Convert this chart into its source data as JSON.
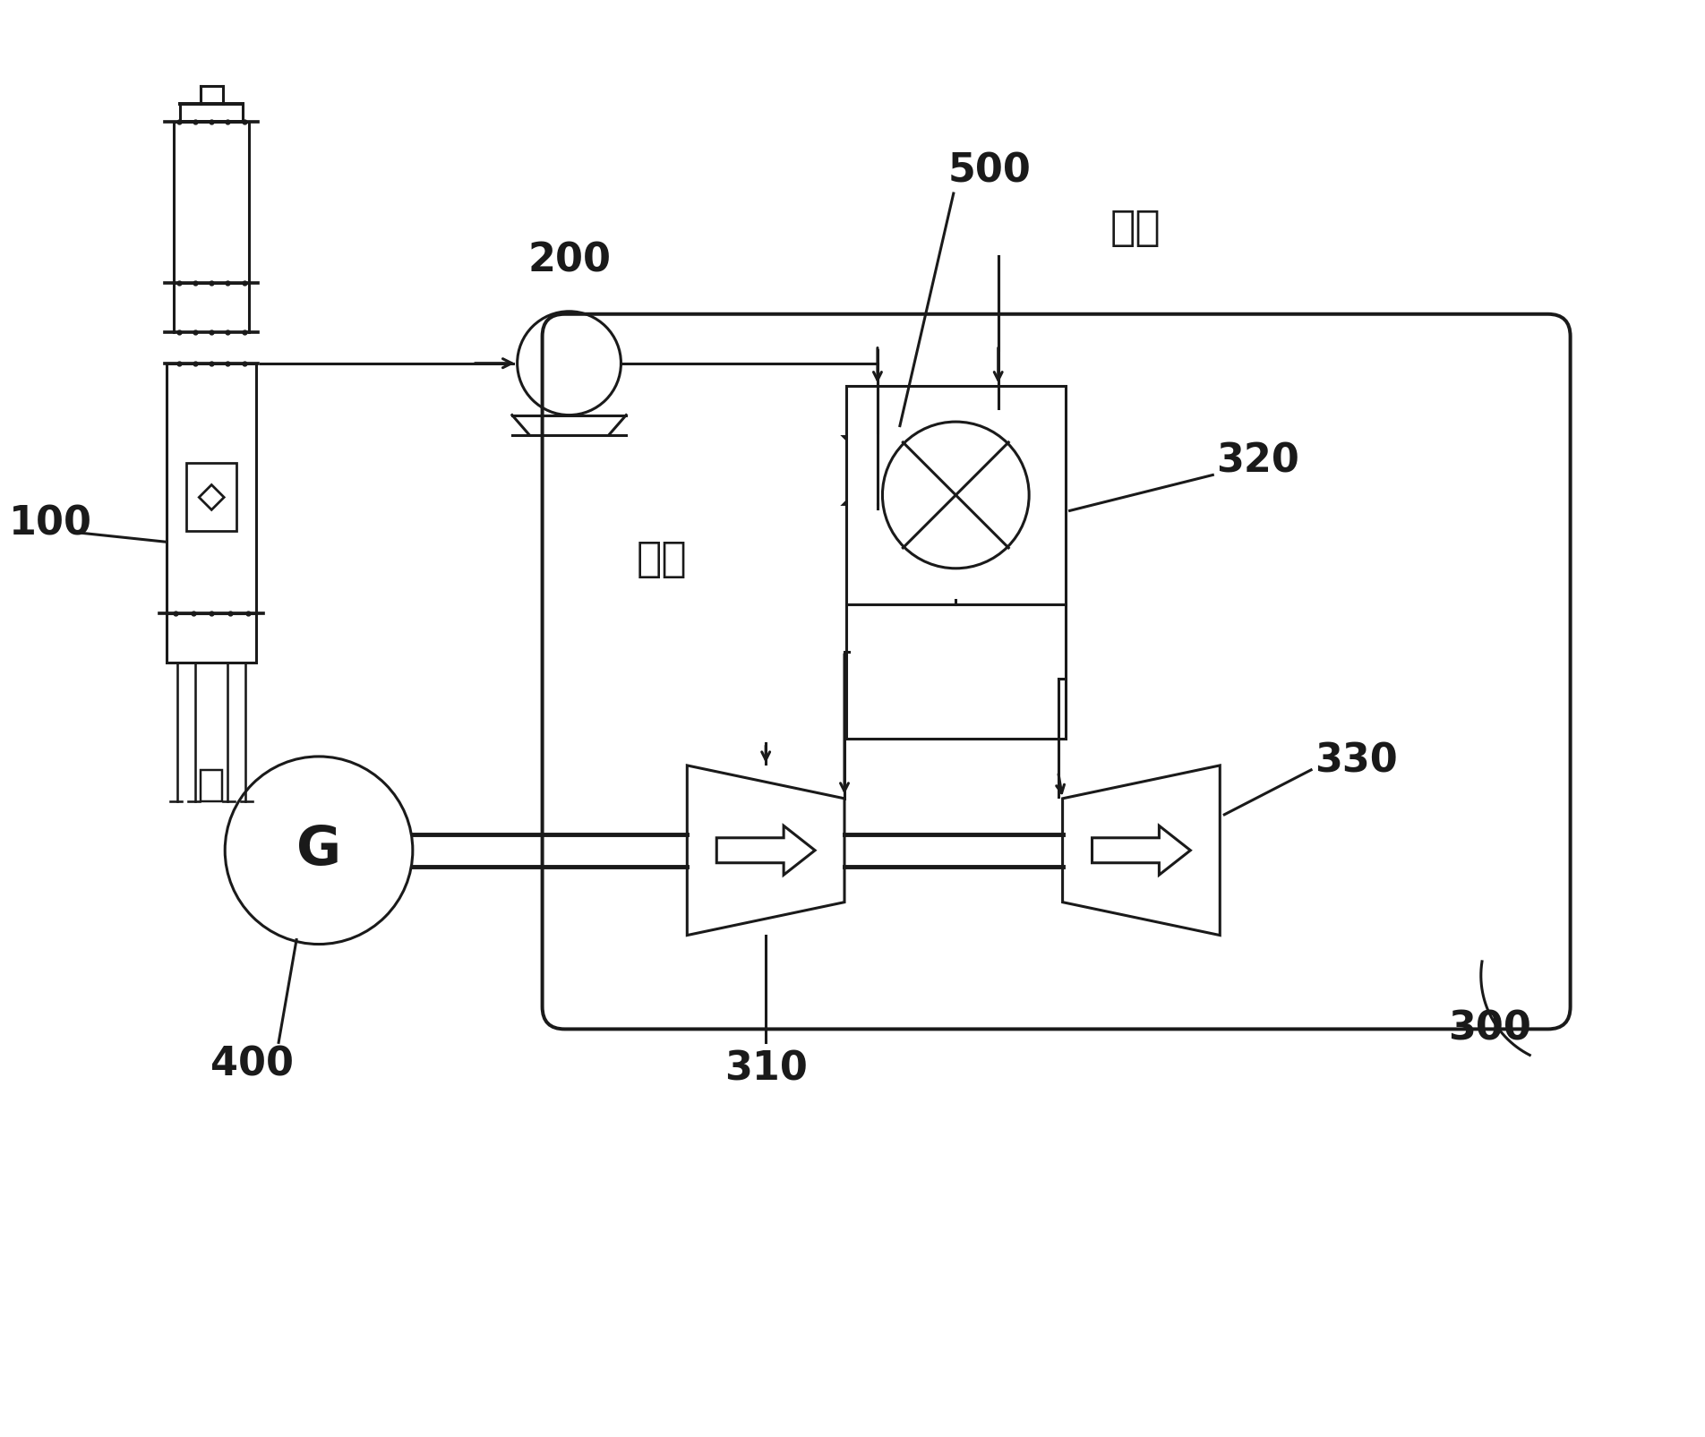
{
  "bg_color": "#ffffff",
  "line_color": "#1a1a1a",
  "line_width": 2.2,
  "figsize": [
    19.04,
    16.05
  ],
  "dpi": 100,
  "label_100": "100",
  "label_200": "200",
  "label_300": "300",
  "label_310": "310",
  "label_320": "320",
  "label_330": "330",
  "label_400": "400",
  "label_500": "500",
  "label_kongqi": "空气",
  "label_ranqi": "燃气",
  "label_G": "G",
  "fontsize_num": 32,
  "fontsize_cn": 34,
  "fontsize_G": 44
}
